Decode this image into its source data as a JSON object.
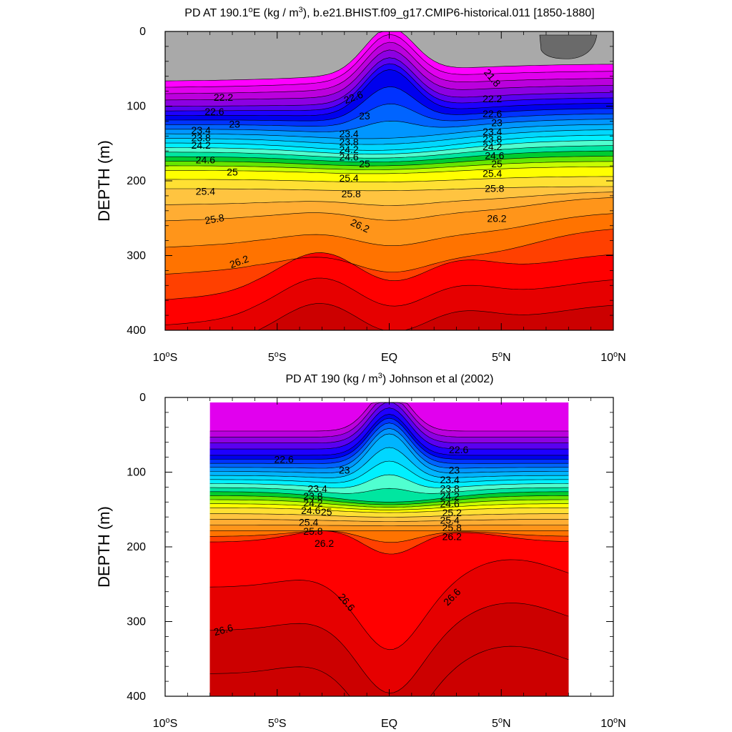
{
  "chart_data": [
    {
      "type": "contour",
      "title": "PD AT 190.1°E (kg / m3), b.e21.BHIST.f09_g17.CMIP6-historical.011 [1850-1880]",
      "title_parts": {
        "pre": "PD AT 190.1",
        "sup1": "o",
        "mid": "E (kg / m",
        "sup2": "3",
        "post": "), b.e21.BHIST.f09_g17.CMIP6-historical.011 [1850-1880]"
      },
      "ylabel": "DEPTH (m)",
      "xlim": [
        -10,
        10
      ],
      "ylim": [
        400,
        0
      ],
      "x_ticks": [
        {
          "v": -10,
          "num": "10",
          "hemi": "S"
        },
        {
          "v": -5,
          "num": "5",
          "hemi": "S"
        },
        {
          "v": 0,
          "label": "EQ"
        },
        {
          "v": 5,
          "num": "5",
          "hemi": "N"
        },
        {
          "v": 10,
          "num": "10",
          "hemi": "N"
        }
      ],
      "y_ticks": [
        "0",
        "100",
        "200",
        "300",
        "400"
      ],
      "data_extent_x": [
        -10,
        10
      ],
      "contour_interval": 0.2,
      "contour_labels": [
        {
          "text": "21.8",
          "x": 4.6,
          "y": 62,
          "rot": 50
        },
        {
          "text": "22.2",
          "x": -7.4,
          "y": 88,
          "rot": 0
        },
        {
          "text": "22.6",
          "x": -7.8,
          "y": 107,
          "rot": 0
        },
        {
          "text": "23",
          "x": -6.9,
          "y": 124,
          "rot": 0
        },
        {
          "text": "23.4",
          "x": -8.4,
          "y": 132,
          "rot": 0
        },
        {
          "text": "23.8",
          "x": -8.4,
          "y": 142,
          "rot": 0
        },
        {
          "text": "24.2",
          "x": -8.4,
          "y": 152,
          "rot": 0
        },
        {
          "text": "24.6",
          "x": -8.2,
          "y": 172,
          "rot": 0
        },
        {
          "text": "25",
          "x": -7.0,
          "y": 188,
          "rot": 0
        },
        {
          "text": "25.4",
          "x": -8.2,
          "y": 214,
          "rot": 0
        },
        {
          "text": "25.8",
          "x": -7.8,
          "y": 251,
          "rot": -10
        },
        {
          "text": "26.2",
          "x": -6.7,
          "y": 308,
          "rot": -20
        },
        {
          "text": "22.6",
          "x": -1.6,
          "y": 88,
          "rot": -20
        },
        {
          "text": "23",
          "x": -1.1,
          "y": 113,
          "rot": 0
        },
        {
          "text": "23.4",
          "x": -1.8,
          "y": 137,
          "rot": 0
        },
        {
          "text": "23.8",
          "x": -1.8,
          "y": 148,
          "rot": 0
        },
        {
          "text": "24.2",
          "x": -1.8,
          "y": 158,
          "rot": 0
        },
        {
          "text": "24.6",
          "x": -1.8,
          "y": 168,
          "rot": 0
        },
        {
          "text": "25",
          "x": -1.1,
          "y": 177,
          "rot": 0
        },
        {
          "text": "25.4",
          "x": -1.8,
          "y": 196,
          "rot": 0
        },
        {
          "text": "25.8",
          "x": -1.7,
          "y": 217,
          "rot": 0
        },
        {
          "text": "26.2",
          "x": -1.3,
          "y": 260,
          "rot": 25
        },
        {
          "text": "22.2",
          "x": 4.6,
          "y": 90,
          "rot": 0
        },
        {
          "text": "22.6",
          "x": 4.6,
          "y": 110,
          "rot": 0
        },
        {
          "text": "23",
          "x": 4.8,
          "y": 122,
          "rot": 0
        },
        {
          "text": "23.4",
          "x": 4.6,
          "y": 134,
          "rot": 0
        },
        {
          "text": "23.8",
          "x": 4.6,
          "y": 144,
          "rot": 0
        },
        {
          "text": "24.2",
          "x": 4.6,
          "y": 154,
          "rot": 0
        },
        {
          "text": "24.6",
          "x": 4.7,
          "y": 166,
          "rot": 0
        },
        {
          "text": "25",
          "x": 4.8,
          "y": 177,
          "rot": 0
        },
        {
          "text": "25.4",
          "x": 4.6,
          "y": 190,
          "rot": 0
        },
        {
          "text": "25.8",
          "x": 4.7,
          "y": 210,
          "rot": 0
        },
        {
          "text": "26.2",
          "x": 4.8,
          "y": 250,
          "rot": 0
        }
      ]
    },
    {
      "type": "contour",
      "title": "PD AT 190 (kg / m3) Johnson et al (2002)",
      "title_parts": {
        "pre": "PD AT 190 (kg / m",
        "sup1": "3",
        "post": ") Johnson et al (2002)"
      },
      "ylabel": "DEPTH (m)",
      "xlim": [
        -10,
        10
      ],
      "ylim": [
        400,
        0
      ],
      "x_ticks": [
        {
          "v": -10,
          "num": "10",
          "hemi": "S"
        },
        {
          "v": -5,
          "num": "5",
          "hemi": "S"
        },
        {
          "v": 0,
          "label": "EQ"
        },
        {
          "v": 5,
          "num": "5",
          "hemi": "N"
        },
        {
          "v": 10,
          "num": "10",
          "hemi": "N"
        }
      ],
      "y_ticks": [
        "0",
        "100",
        "200",
        "300",
        "400"
      ],
      "data_extent_x": [
        -8,
        8
      ],
      "contour_interval": 0.2,
      "contour_labels": [
        {
          "text": "22.6",
          "x": 3.1,
          "y": 70,
          "rot": 0
        },
        {
          "text": "22.6",
          "x": -4.7,
          "y": 83,
          "rot": 0
        },
        {
          "text": "23",
          "x": -2.0,
          "y": 97,
          "rot": 0
        },
        {
          "text": "23",
          "x": 2.9,
          "y": 97,
          "rot": 0
        },
        {
          "text": "23.4",
          "x": -3.2,
          "y": 122,
          "rot": 0
        },
        {
          "text": "23.8",
          "x": -3.4,
          "y": 132,
          "rot": 0
        },
        {
          "text": "24.2",
          "x": -3.4,
          "y": 141,
          "rot": 0
        },
        {
          "text": "24.6",
          "x": -3.5,
          "y": 151,
          "rot": 0
        },
        {
          "text": "25",
          "x": -2.8,
          "y": 153,
          "rot": 0
        },
        {
          "text": "25.4",
          "x": -3.6,
          "y": 167,
          "rot": 0
        },
        {
          "text": "25.8",
          "x": -3.4,
          "y": 179,
          "rot": 0
        },
        {
          "text": "26.2",
          "x": -2.9,
          "y": 195,
          "rot": 0
        },
        {
          "text": "23.4",
          "x": 2.7,
          "y": 110,
          "rot": 0
        },
        {
          "text": "23.8",
          "x": 2.7,
          "y": 122,
          "rot": 0
        },
        {
          "text": "24.2",
          "x": 2.7,
          "y": 132,
          "rot": 0
        },
        {
          "text": "24.6",
          "x": 2.7,
          "y": 142,
          "rot": 0
        },
        {
          "text": "25.2",
          "x": 2.8,
          "y": 154,
          "rot": 0
        },
        {
          "text": "25.4",
          "x": 2.7,
          "y": 164,
          "rot": 0
        },
        {
          "text": "25.8",
          "x": 2.8,
          "y": 174,
          "rot": 0
        },
        {
          "text": "26.2",
          "x": 2.8,
          "y": 186,
          "rot": 0
        },
        {
          "text": "26.6",
          "x": -1.9,
          "y": 274,
          "rot": 50
        },
        {
          "text": "26.6",
          "x": 2.8,
          "y": 267,
          "rot": -45
        },
        {
          "text": "26.6",
          "x": -7.4,
          "y": 311,
          "rot": -15
        }
      ]
    }
  ],
  "colors": {
    "palette": [
      "#6a6a6a",
      "#a9a9a9",
      "#ff00ff",
      "#e100ee",
      "#bb00dd",
      "#8d00e2",
      "#5a00f0",
      "#1e00ff",
      "#0000ee",
      "#0032ff",
      "#0064ff",
      "#0096ff",
      "#00b4ff",
      "#00d7ff",
      "#00f0ff",
      "#50ffd0",
      "#00e6a0",
      "#00cc30",
      "#66e600",
      "#c8ff00",
      "#ffff00",
      "#ffe033",
      "#ffc440",
      "#ffad33",
      "#ff951a",
      "#ff7300",
      "#ff4000",
      "#ff0000",
      "#e60000",
      "#cc0000"
    ]
  }
}
